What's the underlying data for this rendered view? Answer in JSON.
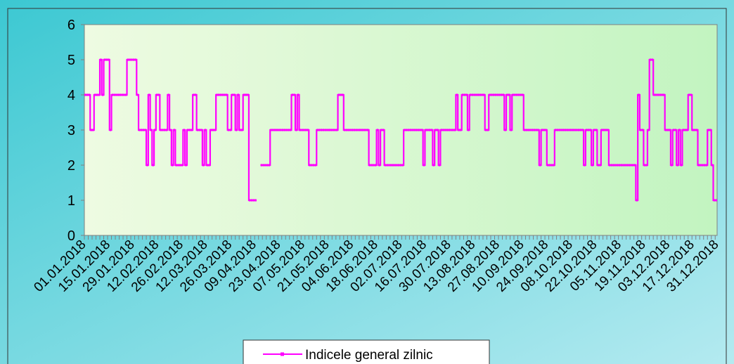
{
  "chart_data": {
    "type": "line",
    "series": [
      {
        "name": "Indicele general zilnic",
        "color": "#ff00ff",
        "values": [
          4,
          4,
          4,
          3,
          3,
          4,
          4,
          4,
          5,
          4,
          5,
          5,
          5,
          3,
          4,
          4,
          4,
          4,
          4,
          4,
          4,
          4,
          5,
          5,
          5,
          5,
          5,
          4,
          3,
          3,
          3,
          3,
          2,
          4,
          3,
          2,
          3,
          4,
          4,
          3,
          3,
          3,
          3,
          4,
          3,
          2,
          3,
          2,
          2,
          2,
          2,
          3,
          2,
          3,
          3,
          3,
          4,
          4,
          3,
          3,
          3,
          2,
          3,
          2,
          2,
          3,
          3,
          3,
          4,
          4,
          4,
          4,
          4,
          4,
          3,
          3,
          4,
          4,
          3,
          4,
          3,
          3,
          4,
          4,
          4,
          1,
          1,
          1,
          1,
          null,
          null,
          2,
          2,
          2,
          2,
          2,
          3,
          3,
          3,
          3,
          3,
          3,
          3,
          3,
          3,
          3,
          3,
          4,
          4,
          3,
          4,
          3,
          3,
          3,
          3,
          3,
          2,
          2,
          2,
          2,
          3,
          3,
          3,
          3,
          3,
          3,
          3,
          3,
          3,
          3,
          3,
          4,
          4,
          4,
          3,
          3,
          3,
          3,
          3,
          3,
          3,
          3,
          3,
          3,
          3,
          3,
          3,
          2,
          2,
          2,
          2,
          3,
          2,
          3,
          3,
          2,
          2,
          2,
          2,
          2,
          2,
          2,
          2,
          2,
          2,
          3,
          3,
          3,
          3,
          3,
          3,
          3,
          3,
          3,
          3,
          2,
          3,
          3,
          3,
          3,
          2,
          3,
          3,
          2,
          3,
          3,
          3,
          3,
          3,
          3,
          3,
          3,
          4,
          3,
          3,
          4,
          4,
          4,
          3,
          4,
          4,
          4,
          4,
          4,
          4,
          4,
          4,
          3,
          3,
          4,
          4,
          4,
          4,
          4,
          4,
          4,
          4,
          3,
          4,
          4,
          3,
          4,
          4,
          4,
          4,
          4,
          4,
          3,
          3,
          3,
          3,
          3,
          3,
          3,
          3,
          2,
          3,
          3,
          3,
          2,
          2,
          2,
          2,
          3,
          3,
          3,
          3,
          3,
          3,
          3,
          3,
          3,
          3,
          3,
          3,
          3,
          3,
          3,
          2,
          3,
          3,
          3,
          2,
          3,
          3,
          2,
          2,
          3,
          3,
          3,
          3,
          2,
          2,
          2,
          2,
          2,
          2,
          2,
          2,
          2,
          2,
          2,
          2,
          2,
          2,
          1,
          4,
          3,
          3,
          2,
          2,
          3,
          5,
          5,
          4,
          4,
          4,
          4,
          4,
          4,
          3,
          3,
          3,
          2,
          3,
          3,
          2,
          3,
          2,
          3,
          3,
          3,
          4,
          4,
          3,
          3,
          3,
          2,
          2,
          2,
          2,
          2,
          3,
          3,
          2,
          1,
          1
        ]
      }
    ],
    "x_tick_labels": [
      "01.01.2018",
      "15.01.2018",
      "29.01.2018",
      "12.02.2018",
      "26.02.2018",
      "12.03.2018",
      "26.03.2018",
      "09.04.2018",
      "23.04.2018",
      "07.05.2018",
      "21.05.2018",
      "04.06.2018",
      "18.06.2018",
      "02.07.2018",
      "16.07.2018",
      "30.07.2018",
      "13.08.2018",
      "27.08.2018",
      "10.09.2018",
      "24.09.2018",
      "08.10.2018",
      "22.10.2018",
      "05.11.2018",
      "19.11.2018",
      "03.12.2018",
      "17.12.2018",
      "31.12.2018"
    ],
    "y_ticks": [
      0,
      1,
      2,
      3,
      4,
      5,
      6
    ],
    "ylim": [
      0,
      6
    ],
    "grid": false,
    "legend_position": "bottom",
    "colors": {
      "frame_gradient_start": "#3cc8d2",
      "frame_gradient_end": "#b4eaf0",
      "plot_gradient_start": "#eefbe2",
      "plot_gradient_end": "#c2f4c0",
      "line": "#ff00ff"
    }
  }
}
